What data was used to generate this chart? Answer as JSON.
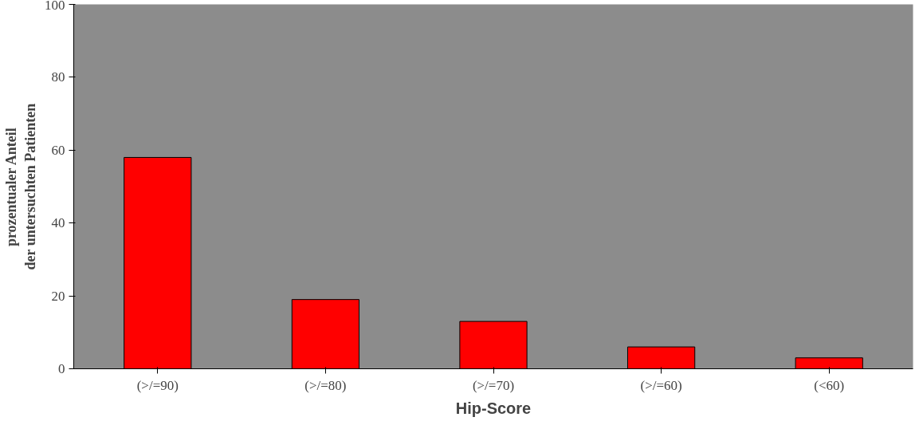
{
  "chart_data": {
    "type": "bar",
    "categories": [
      "(>/=90)",
      "(>/=80)",
      "(>/=70)",
      "(>/=60)",
      "(<60)"
    ],
    "values": [
      58,
      19,
      13,
      6,
      3
    ],
    "color": "#ff0000",
    "xlabel": "Hip-Score",
    "ylabel": "prozentualer Anteil\nder untersuchten Patienten",
    "ylim": [
      0,
      100
    ],
    "yticks": [
      0,
      20,
      40,
      60,
      80,
      100
    ],
    "grid": false
  }
}
